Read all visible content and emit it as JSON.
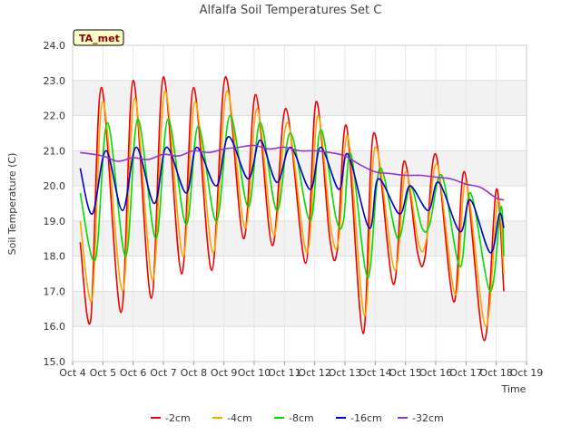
{
  "chart_data": {
    "type": "line",
    "title": "Alfalfa Soil Temperatures Set C",
    "xlabel": "Time",
    "ylabel": "Soil Temperature (C)",
    "site_label": "TA_met",
    "xlim": [
      4,
      19
    ],
    "ylim": [
      15.0,
      24.0
    ],
    "x_ticks": [
      {
        "value": 4,
        "label": "Oct 4"
      },
      {
        "value": 5,
        "label": "Oct 5"
      },
      {
        "value": 6,
        "label": "Oct 6"
      },
      {
        "value": 7,
        "label": "Oct 7"
      },
      {
        "value": 8,
        "label": "Oct 8"
      },
      {
        "value": 9,
        "label": "Oct 9"
      },
      {
        "value": 10,
        "label": "Oct 10"
      },
      {
        "value": 11,
        "label": "Oct 11"
      },
      {
        "value": 12,
        "label": "Oct 12"
      },
      {
        "value": 13,
        "label": "Oct 13"
      },
      {
        "value": 14,
        "label": "Oct 14"
      },
      {
        "value": 15,
        "label": "Oct 15"
      },
      {
        "value": 16,
        "label": "Oct 16"
      },
      {
        "value": 17,
        "label": "Oct 17"
      },
      {
        "value": 18,
        "label": "Oct 18"
      },
      {
        "value": 19,
        "label": "Oct 19"
      }
    ],
    "y_ticks": [
      {
        "value": 15,
        "label": "15.0"
      },
      {
        "value": 16,
        "label": "16.0"
      },
      {
        "value": 17,
        "label": "17.0"
      },
      {
        "value": 18,
        "label": "18.0"
      },
      {
        "value": 19,
        "label": "19.0"
      },
      {
        "value": 20,
        "label": "20.0"
      },
      {
        "value": 21,
        "label": "21.0"
      },
      {
        "value": 22,
        "label": "22.0"
      },
      {
        "value": 23,
        "label": "23.0"
      },
      {
        "value": 24,
        "label": "24.0"
      }
    ],
    "grid": true,
    "background_bands": true,
    "legend_position": "bottom",
    "series": [
      {
        "name": "-2cm",
        "color": "#ee0000",
        "points": [
          [
            4.25,
            18.4
          ],
          [
            4.6,
            16.2
          ],
          [
            4.95,
            22.8
          ],
          [
            5.6,
            16.4
          ],
          [
            6.0,
            23.0
          ],
          [
            6.6,
            16.8
          ],
          [
            7.0,
            23.1
          ],
          [
            7.6,
            17.5
          ],
          [
            8.0,
            22.8
          ],
          [
            8.6,
            17.6
          ],
          [
            9.05,
            23.1
          ],
          [
            9.65,
            18.5
          ],
          [
            10.05,
            22.6
          ],
          [
            10.6,
            18.3
          ],
          [
            11.05,
            22.2
          ],
          [
            11.7,
            17.8
          ],
          [
            12.05,
            22.4
          ],
          [
            12.5,
            18.5
          ],
          [
            12.75,
            18.2
          ],
          [
            13.05,
            21.7
          ],
          [
            13.6,
            15.8
          ],
          [
            13.95,
            21.5
          ],
          [
            14.6,
            17.2
          ],
          [
            14.95,
            20.7
          ],
          [
            15.4,
            18.1
          ],
          [
            15.65,
            18.0
          ],
          [
            16.0,
            20.9
          ],
          [
            16.6,
            16.7
          ],
          [
            16.95,
            20.4
          ],
          [
            17.6,
            15.6
          ],
          [
            18.0,
            19.9
          ],
          [
            18.25,
            17.0
          ]
        ]
      },
      {
        "name": "-4cm",
        "color": "#ffa500",
        "points": [
          [
            4.25,
            19.0
          ],
          [
            4.65,
            16.8
          ],
          [
            5.0,
            22.4
          ],
          [
            5.65,
            17.0
          ],
          [
            6.05,
            22.5
          ],
          [
            6.65,
            17.3
          ],
          [
            7.05,
            22.7
          ],
          [
            7.65,
            18.0
          ],
          [
            8.05,
            22.4
          ],
          [
            8.65,
            18.1
          ],
          [
            9.1,
            22.7
          ],
          [
            9.7,
            18.8
          ],
          [
            10.1,
            22.2
          ],
          [
            10.65,
            18.6
          ],
          [
            11.1,
            21.8
          ],
          [
            11.75,
            18.1
          ],
          [
            12.1,
            22.0
          ],
          [
            12.55,
            18.7
          ],
          [
            12.8,
            18.5
          ],
          [
            13.1,
            21.4
          ],
          [
            13.65,
            16.3
          ],
          [
            14.0,
            21.1
          ],
          [
            14.65,
            17.6
          ],
          [
            15.0,
            20.4
          ],
          [
            15.45,
            18.3
          ],
          [
            15.7,
            18.5
          ],
          [
            16.05,
            20.6
          ],
          [
            16.65,
            16.9
          ],
          [
            17.0,
            20.1
          ],
          [
            17.65,
            16.0
          ],
          [
            18.05,
            19.6
          ],
          [
            18.25,
            17.5
          ]
        ]
      },
      {
        "name": "-8cm",
        "color": "#00dd00",
        "points": [
          [
            4.25,
            19.8
          ],
          [
            4.75,
            17.9
          ],
          [
            5.15,
            21.8
          ],
          [
            5.75,
            18.0
          ],
          [
            6.15,
            21.9
          ],
          [
            6.75,
            18.5
          ],
          [
            7.15,
            21.9
          ],
          [
            7.75,
            18.9
          ],
          [
            8.15,
            21.7
          ],
          [
            8.75,
            19.0
          ],
          [
            9.2,
            22.0
          ],
          [
            9.8,
            19.4
          ],
          [
            10.2,
            21.8
          ],
          [
            10.75,
            19.3
          ],
          [
            11.2,
            21.5
          ],
          [
            11.85,
            19.0
          ],
          [
            12.2,
            21.6
          ],
          [
            12.7,
            19.1
          ],
          [
            12.95,
            19.0
          ],
          [
            13.2,
            20.9
          ],
          [
            13.75,
            17.4
          ],
          [
            14.15,
            20.5
          ],
          [
            14.75,
            18.5
          ],
          [
            15.15,
            20.0
          ],
          [
            15.55,
            18.8
          ],
          [
            15.8,
            18.9
          ],
          [
            16.2,
            20.3
          ],
          [
            16.8,
            17.7
          ],
          [
            17.15,
            19.8
          ],
          [
            17.8,
            17.0
          ],
          [
            18.15,
            19.4
          ],
          [
            18.25,
            18.0
          ]
        ]
      },
      {
        "name": "-16cm",
        "color": "#0000cc",
        "points": [
          [
            4.25,
            20.5
          ],
          [
            4.65,
            19.2
          ],
          [
            5.1,
            21.0
          ],
          [
            5.65,
            19.3
          ],
          [
            6.1,
            21.1
          ],
          [
            6.7,
            19.5
          ],
          [
            7.1,
            21.1
          ],
          [
            7.75,
            19.8
          ],
          [
            8.1,
            21.1
          ],
          [
            8.75,
            20.0
          ],
          [
            9.15,
            21.4
          ],
          [
            9.8,
            20.2
          ],
          [
            10.2,
            21.3
          ],
          [
            10.75,
            20.1
          ],
          [
            11.2,
            21.1
          ],
          [
            11.85,
            19.9
          ],
          [
            12.2,
            21.1
          ],
          [
            12.8,
            19.9
          ],
          [
            13.1,
            20.9
          ],
          [
            13.8,
            18.8
          ],
          [
            14.1,
            20.2
          ],
          [
            14.8,
            19.2
          ],
          [
            15.15,
            20.0
          ],
          [
            15.75,
            19.3
          ],
          [
            16.1,
            20.1
          ],
          [
            16.8,
            18.7
          ],
          [
            17.15,
            19.6
          ],
          [
            17.8,
            18.1
          ],
          [
            18.1,
            19.2
          ],
          [
            18.25,
            18.8
          ]
        ]
      },
      {
        "name": "-32cm",
        "color": "#9933cc",
        "points": [
          [
            4.25,
            20.95
          ],
          [
            5.0,
            20.85
          ],
          [
            5.5,
            20.7
          ],
          [
            6.0,
            20.8
          ],
          [
            6.5,
            20.75
          ],
          [
            7.0,
            20.9
          ],
          [
            7.5,
            20.85
          ],
          [
            8.0,
            21.0
          ],
          [
            8.5,
            20.95
          ],
          [
            9.0,
            21.05
          ],
          [
            9.5,
            21.1
          ],
          [
            10.0,
            21.15
          ],
          [
            10.5,
            21.05
          ],
          [
            11.0,
            21.1
          ],
          [
            11.5,
            21.0
          ],
          [
            12.0,
            21.0
          ],
          [
            12.5,
            20.95
          ],
          [
            13.0,
            20.85
          ],
          [
            13.5,
            20.6
          ],
          [
            14.0,
            20.4
          ],
          [
            14.5,
            20.35
          ],
          [
            15.0,
            20.3
          ],
          [
            15.5,
            20.3
          ],
          [
            16.0,
            20.25
          ],
          [
            16.5,
            20.2
          ],
          [
            17.0,
            20.05
          ],
          [
            17.5,
            19.95
          ],
          [
            18.0,
            19.65
          ],
          [
            18.25,
            19.6
          ]
        ]
      }
    ]
  }
}
